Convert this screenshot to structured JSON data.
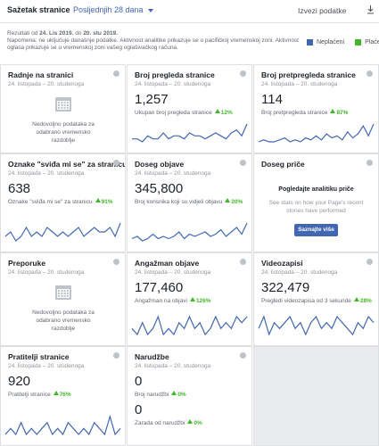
{
  "header": {
    "title": "Sažetak stranice",
    "period": "Posljednjih 28 dana",
    "export": "Izvezi podatke"
  },
  "note": {
    "prefix": "Rezultati od",
    "start": "24. Lis 2019.",
    "middle": "do",
    "end": "20. stu 2019.",
    "text": "Napomena: ne uključuje današnje podatke. Aktivnost analitike prikazuje se u pacifičkoj vremenskoj zoni. Aktivnost oglasa prikazuje se u vremenskoj zoni vašeg oglašivačkog računa."
  },
  "legend": [
    {
      "label": "Neplaćeni",
      "color": "#4267b2"
    },
    {
      "label": "Plaćeno",
      "color": "#42b72a"
    }
  ],
  "cards": [
    {
      "title": "Radnje na stranici",
      "date": "24. listopada – 20. studenoga",
      "no_data": "Nedovoljno podataka za odabrano vremensko razdoblje"
    },
    {
      "title": "Broj pregleda stranice",
      "date": "24. listopada – 20. studenoga",
      "metrics": [
        {
          "value": "1,257",
          "label": "Ukupan broj pregleda stranice",
          "change": "12%"
        }
      ],
      "sparkline": [
        3,
        3,
        2,
        4,
        3,
        3,
        5,
        3,
        4,
        4,
        3,
        5,
        4,
        4,
        3,
        4,
        5,
        4,
        3,
        5,
        6,
        4,
        8
      ]
    },
    {
      "title": "Broj pretpregleda stranice",
      "date": "24. listopada – 20. studenoga",
      "metrics": [
        {
          "value": "114",
          "label": "Broj pretpregleda stranice",
          "change": "87%"
        }
      ],
      "sparkline": [
        1,
        2,
        1,
        1,
        2,
        3,
        1,
        2,
        1,
        3,
        2,
        4,
        2,
        5,
        3,
        4,
        2,
        6,
        3,
        5,
        9,
        4,
        10
      ]
    },
    {
      "title": "Oznake \"sviđa mi se\" za stranicu",
      "date": "24. listopada – 20. studenoga",
      "metrics": [
        {
          "value": "638",
          "label": "Oznake \"sviđa mi se\" za stranicu",
          "change": "91%"
        }
      ],
      "sparkline": [
        3,
        4,
        2,
        3,
        5,
        3,
        4,
        3,
        5,
        4,
        3,
        4,
        3,
        4,
        5,
        3,
        4,
        5,
        4,
        4,
        5,
        3,
        6
      ]
    },
    {
      "title": "Doseg objave",
      "date": "24. listopada – 20. studenoga",
      "metrics": [
        {
          "value": "345,800",
          "label": "Broj korisnika koji su vidjeli objavu",
          "change": "20%"
        }
      ],
      "sparkline": [
        5,
        6,
        4,
        5,
        7,
        5,
        6,
        5,
        6,
        8,
        5,
        7,
        6,
        7,
        8,
        6,
        7,
        9,
        6,
        8,
        10,
        7,
        12
      ]
    },
    {
      "title": "Doseg priče",
      "heading": "Pogledajte analitiku priče",
      "text": "See stats on how your Page's recent stories have performed",
      "button": "Saznajte više"
    },
    {
      "title": "Preporuke",
      "date": "24. listopada – 20. studenoga",
      "no_data": "Nedovoljno podataka za odabrano vremensko razdoblje"
    },
    {
      "title": "Angažman objave",
      "date": "24. listopada – 20. studenoga",
      "metrics": [
        {
          "value": "177,460",
          "label": "Angažman na objavi",
          "change": "126%"
        }
      ],
      "sparkline": [
        4,
        3,
        5,
        3,
        4,
        6,
        3,
        4,
        3,
        5,
        4,
        6,
        4,
        5,
        3,
        4,
        6,
        4,
        5,
        4,
        6,
        5,
        6
      ]
    },
    {
      "title": "Videozapisi",
      "date": "24. listopada – 20. studenoga",
      "metrics": [
        {
          "value": "322,479",
          "label": "Pregledi videozapisa od 3 sekunde",
          "change": "28%"
        }
      ],
      "sparkline": [
        4,
        6,
        3,
        5,
        4,
        5,
        6,
        4,
        5,
        3,
        5,
        6,
        4,
        5,
        4,
        6,
        5,
        4,
        3,
        5,
        4,
        6,
        5
      ]
    },
    {
      "title": "Pratitelji stranice",
      "date": "24. listopada – 20. studenoga",
      "metrics": [
        {
          "value": "920",
          "label": "Pratitelji stranice",
          "change": "76%"
        }
      ],
      "sparkline": [
        3,
        4,
        3,
        5,
        3,
        4,
        3,
        4,
        5,
        3,
        4,
        3,
        5,
        4,
        3,
        4,
        3,
        5,
        4,
        3,
        6,
        3,
        4
      ]
    },
    {
      "title": "Narudžbe",
      "date": "24. listopada – 20. studenoga",
      "metrics": [
        {
          "value": "0",
          "label": "Broj narudžbi",
          "change": "0%"
        },
        {
          "value": "0",
          "label": "Zarada od narudžbi",
          "change": "0%"
        }
      ]
    }
  ]
}
